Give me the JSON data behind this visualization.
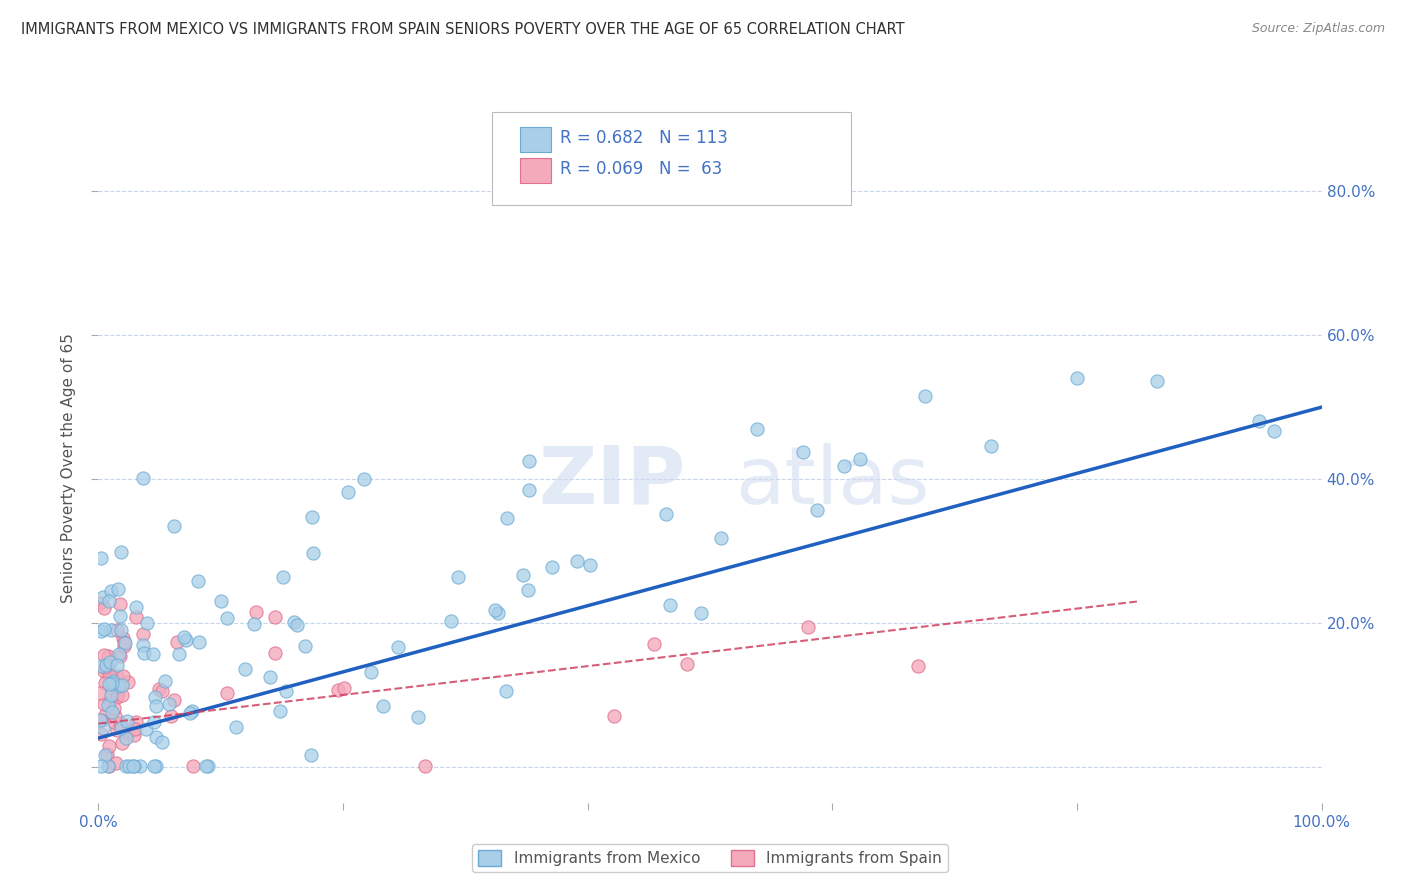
{
  "title": "IMMIGRANTS FROM MEXICO VS IMMIGRANTS FROM SPAIN SENIORS POVERTY OVER THE AGE OF 65 CORRELATION CHART",
  "source": "Source: ZipAtlas.com",
  "ylabel": "Seniors Poverty Over the Age of 65",
  "xlim": [
    0,
    1.0
  ],
  "ylim": [
    -0.05,
    0.88
  ],
  "mexico_color": "#A8CEE8",
  "mexico_edge": "#6AAAD4",
  "spain_color": "#F4AABB",
  "spain_edge": "#E07090",
  "trend_mexico_color": "#2060C0",
  "trend_spain_color": "#D04060",
  "R_mexico": 0.682,
  "N_mexico": 113,
  "R_spain": 0.069,
  "N_spain": 63,
  "legend_label_mexico": "Immigrants from Mexico",
  "legend_label_spain": "Immigrants from Spain",
  "background_color": "#FFFFFF",
  "grid_color": "#C8D4E8",
  "title_color": "#303030",
  "axis_color": "#4472C4",
  "watermark_color": "#D0DCF0"
}
